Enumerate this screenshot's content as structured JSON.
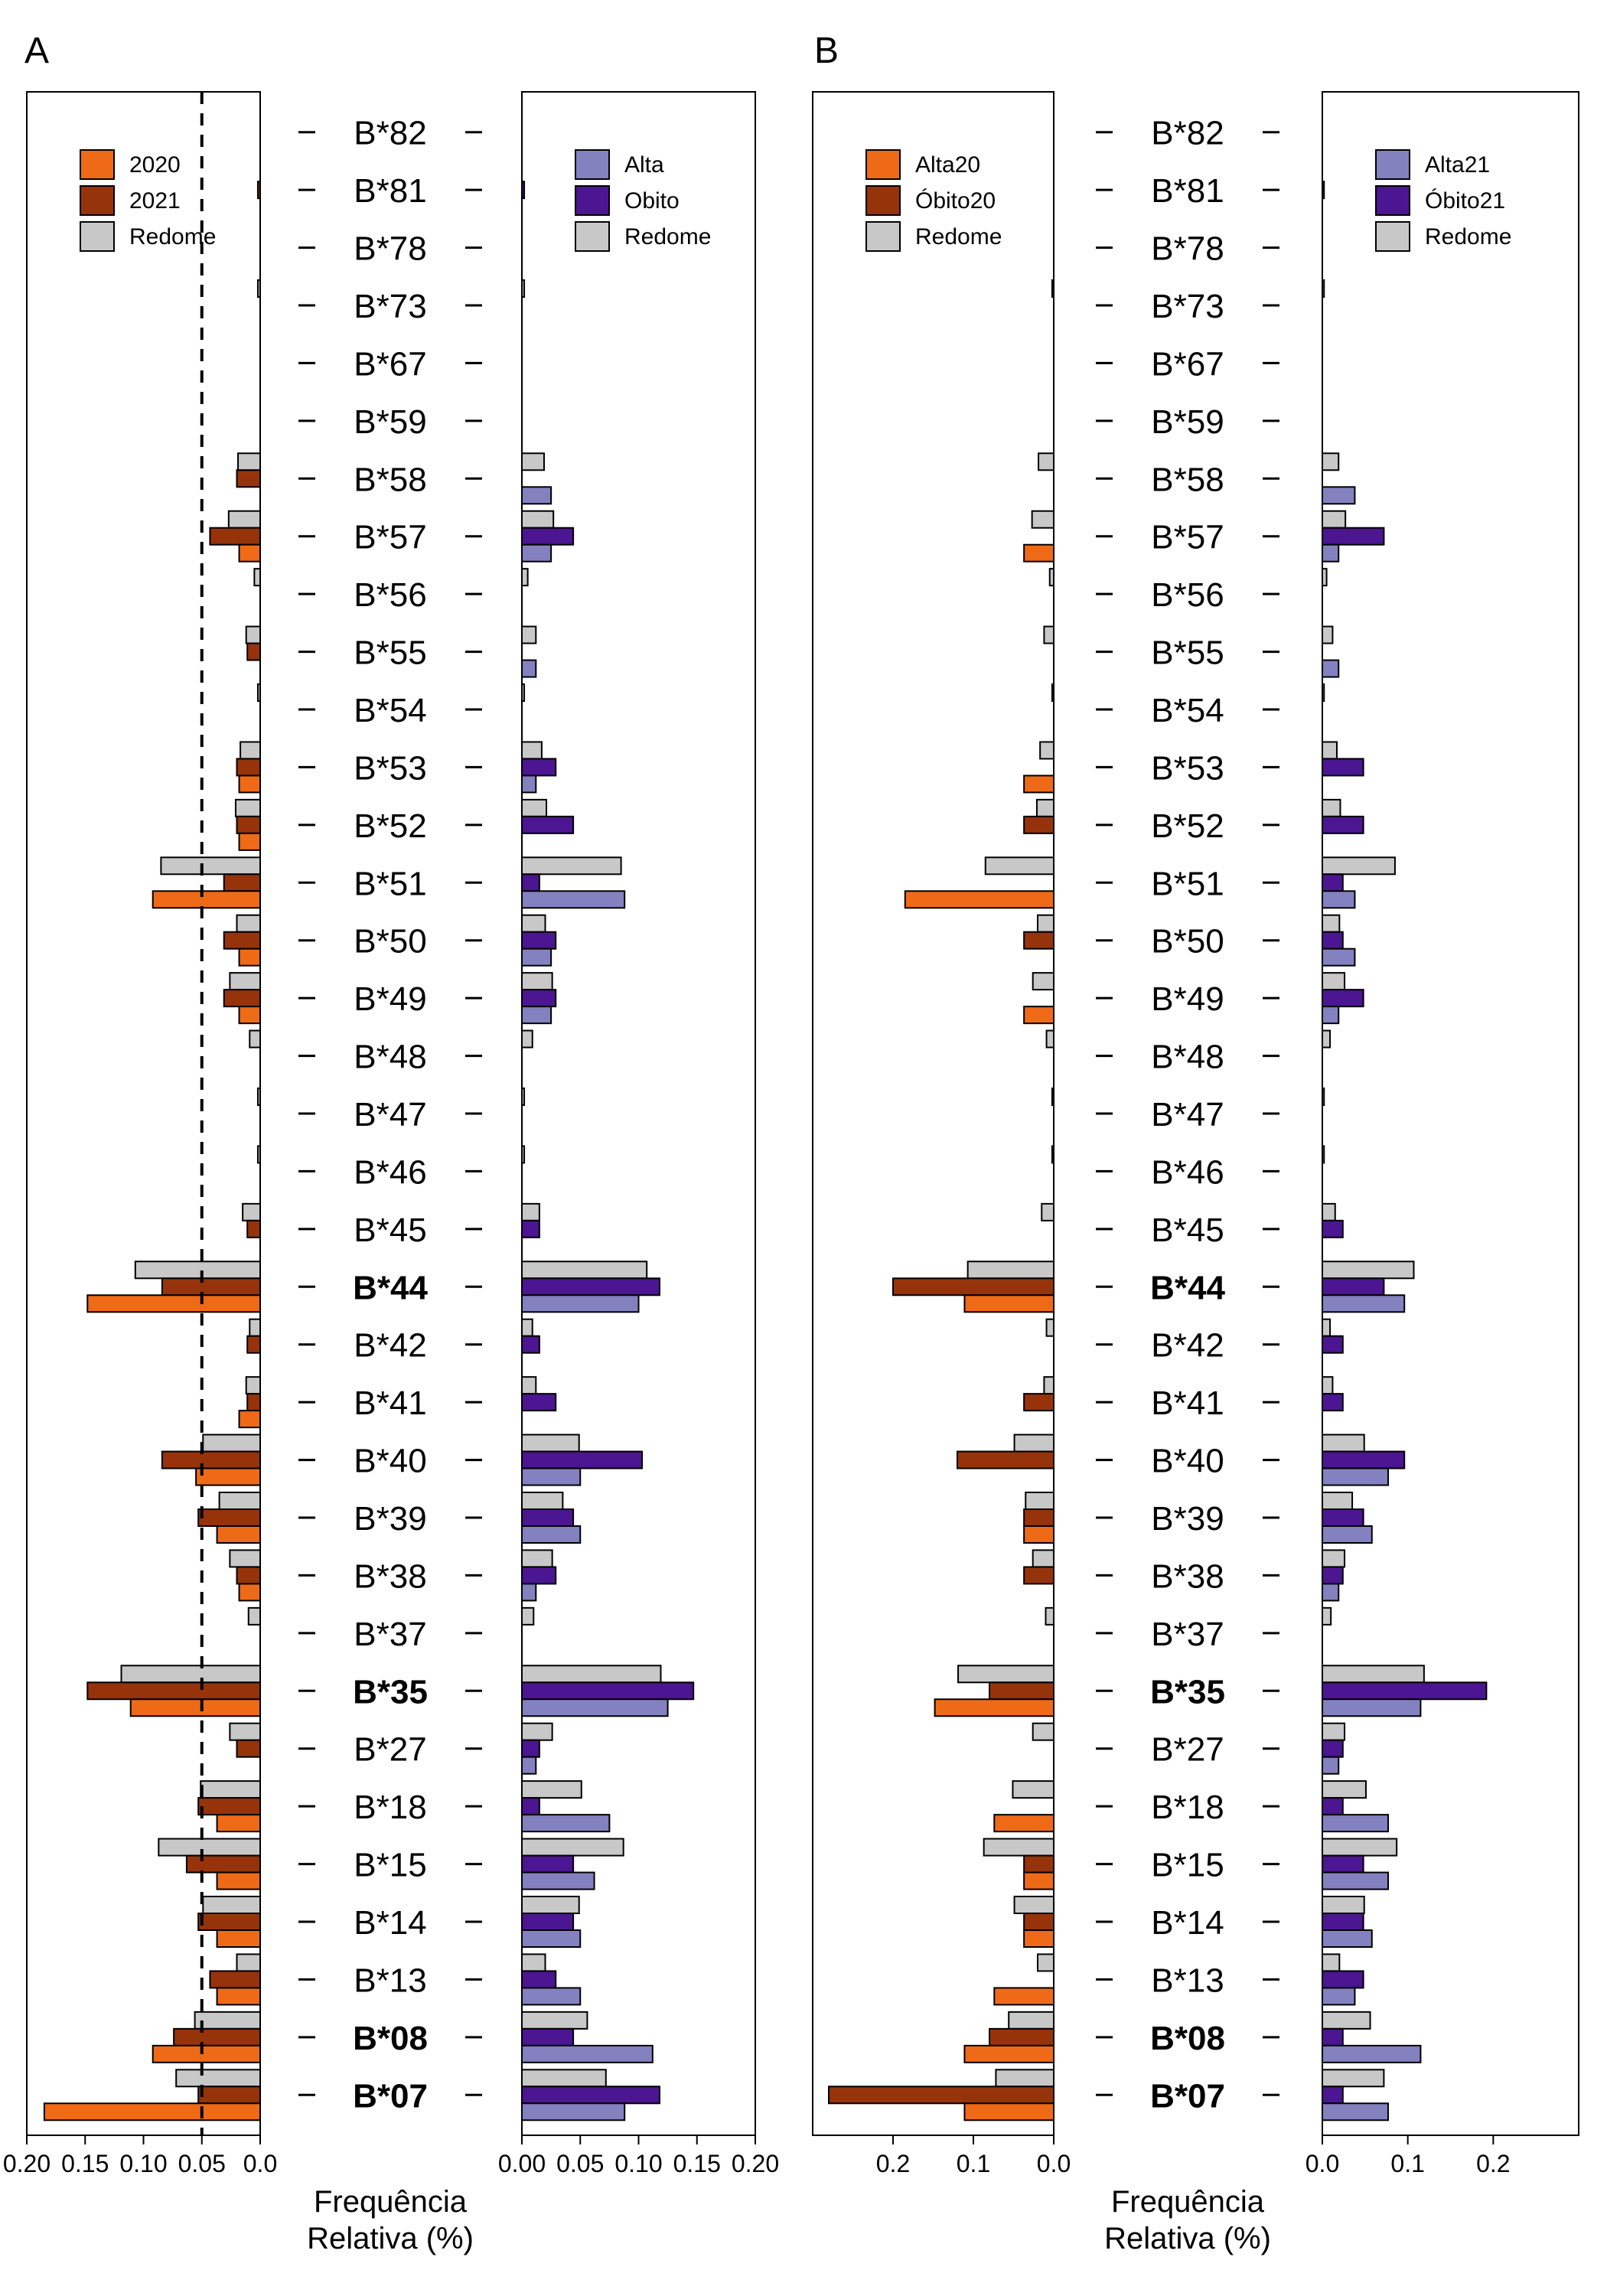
{
  "figure": {
    "genes": [
      "B*82",
      "B*81",
      "B*78",
      "B*73",
      "B*67",
      "B*59",
      "B*58",
      "B*57",
      "B*56",
      "B*55",
      "B*54",
      "B*53",
      "B*52",
      "B*51",
      "B*50",
      "B*49",
      "B*48",
      "B*47",
      "B*46",
      "B*45",
      "B*44",
      "B*42",
      "B*41",
      "B*40",
      "B*39",
      "B*38",
      "B*37",
      "B*35",
      "B*27",
      "B*18",
      "B*15",
      "B*14",
      "B*13",
      "B*08",
      "B*07"
    ],
    "bold_genes": [
      "B*44",
      "B*35",
      "B*08",
      "B*07"
    ],
    "xlabel_line1": "Frequência",
    "xlabel_line2": "Relativa (%)",
    "colors": {
      "orange": "#EF6A17",
      "brown": "#96330B",
      "grey": "#C8C8C8",
      "light_purple": "#8481C0",
      "dark_purple": "#4C1591",
      "outline": "#000000"
    }
  },
  "chart_data": [
    {
      "panel": "A",
      "side": "left",
      "type": "bar",
      "orientation": "horizontal-mirrored",
      "categories": [
        "B*82",
        "B*81",
        "B*78",
        "B*73",
        "B*67",
        "B*59",
        "B*58",
        "B*57",
        "B*56",
        "B*55",
        "B*54",
        "B*53",
        "B*52",
        "B*51",
        "B*50",
        "B*49",
        "B*48",
        "B*47",
        "B*46",
        "B*45",
        "B*44",
        "B*42",
        "B*41",
        "B*40",
        "B*39",
        "B*38",
        "B*37",
        "B*35",
        "B*27",
        "B*18",
        "B*15",
        "B*14",
        "B*13",
        "B*08",
        "B*07"
      ],
      "series": [
        {
          "name": "2020",
          "color": "#EF6A17",
          "values": [
            0,
            0,
            0,
            0,
            0,
            0,
            0,
            0.018,
            0,
            0,
            0,
            0.018,
            0.018,
            0.092,
            0.018,
            0.018,
            0,
            0,
            0,
            0,
            0.148,
            0,
            0.018,
            0.055,
            0.037,
            0.018,
            0,
            0.111,
            0,
            0.037,
            0.037,
            0.037,
            0.037,
            0.092,
            0.185
          ]
        },
        {
          "name": "2021",
          "color": "#96330B",
          "values": [
            0,
            0.002,
            0,
            0,
            0,
            0,
            0.02,
            0.043,
            0,
            0.011,
            0,
            0.02,
            0.02,
            0.031,
            0.031,
            0.031,
            0,
            0,
            0,
            0.011,
            0.084,
            0.011,
            0.011,
            0.084,
            0.053,
            0.02,
            0,
            0.148,
            0.02,
            0.053,
            0.063,
            0.053,
            0.043,
            0.074,
            0.053
          ]
        },
        {
          "name": "Redome",
          "color": "#C8C8C8",
          "values": [
            0,
            0,
            0,
            0.002,
            0,
            0,
            0.019,
            0.027,
            0.005,
            0.012,
            0.002,
            0.017,
            0.021,
            0.085,
            0.02,
            0.026,
            0.009,
            0.002,
            0.002,
            0.015,
            0.107,
            0.009,
            0.012,
            0.049,
            0.035,
            0.026,
            0.01,
            0.119,
            0.026,
            0.051,
            0.087,
            0.049,
            0.02,
            0.056,
            0.072
          ]
        }
      ],
      "reference_line": 0.05,
      "xlim": [
        0.2,
        0.0
      ],
      "xticks": [
        "0.20",
        "0.15",
        "0.10",
        "0.05",
        "0.0"
      ],
      "legend": "top-left"
    },
    {
      "panel": "A",
      "side": "right",
      "type": "bar",
      "orientation": "horizontal",
      "categories": [
        "B*82",
        "B*81",
        "B*78",
        "B*73",
        "B*67",
        "B*59",
        "B*58",
        "B*57",
        "B*56",
        "B*55",
        "B*54",
        "B*53",
        "B*52",
        "B*51",
        "B*50",
        "B*49",
        "B*48",
        "B*47",
        "B*46",
        "B*45",
        "B*44",
        "B*42",
        "B*41",
        "B*40",
        "B*39",
        "B*38",
        "B*37",
        "B*35",
        "B*27",
        "B*18",
        "B*15",
        "B*14",
        "B*13",
        "B*08",
        "B*07"
      ],
      "series": [
        {
          "name": "Alta",
          "color": "#8481C0",
          "values": [
            0,
            0,
            0,
            0,
            0,
            0,
            0.025,
            0.025,
            0,
            0.012,
            0,
            0.012,
            0,
            0.088,
            0.025,
            0.025,
            0,
            0,
            0,
            0,
            0.1,
            0,
            0,
            0.05,
            0.05,
            0.012,
            0,
            0.125,
            0.012,
            0.075,
            0.062,
            0.05,
            0.05,
            0.112,
            0.088
          ]
        },
        {
          "name": "Obito",
          "color": "#4C1591",
          "values": [
            0,
            0.002,
            0,
            0,
            0,
            0,
            0,
            0.044,
            0,
            0,
            0,
            0.029,
            0.044,
            0.015,
            0.029,
            0.029,
            0,
            0,
            0,
            0.015,
            0.118,
            0.015,
            0.029,
            0.103,
            0.044,
            0.029,
            0,
            0.147,
            0.015,
            0.015,
            0.044,
            0.044,
            0.029,
            0.044,
            0.118
          ]
        },
        {
          "name": "Redome",
          "color": "#C8C8C8",
          "values": [
            0,
            0,
            0,
            0.002,
            0,
            0,
            0.019,
            0.027,
            0.005,
            0.012,
            0.002,
            0.017,
            0.021,
            0.085,
            0.02,
            0.026,
            0.009,
            0.002,
            0.002,
            0.015,
            0.107,
            0.009,
            0.012,
            0.049,
            0.035,
            0.026,
            0.01,
            0.119,
            0.026,
            0.051,
            0.087,
            0.049,
            0.02,
            0.056,
            0.072
          ]
        }
      ],
      "xlim": [
        0.0,
        0.2
      ],
      "xticks": [
        "0.00",
        "0.05",
        "0.10",
        "0.15",
        "0.20"
      ],
      "legend": "top-right"
    },
    {
      "panel": "B",
      "side": "left",
      "type": "bar",
      "orientation": "horizontal-mirrored",
      "categories": [
        "B*82",
        "B*81",
        "B*78",
        "B*73",
        "B*67",
        "B*59",
        "B*58",
        "B*57",
        "B*56",
        "B*55",
        "B*54",
        "B*53",
        "B*52",
        "B*51",
        "B*50",
        "B*49",
        "B*48",
        "B*47",
        "B*46",
        "B*45",
        "B*44",
        "B*42",
        "B*41",
        "B*40",
        "B*39",
        "B*38",
        "B*37",
        "B*35",
        "B*27",
        "B*18",
        "B*15",
        "B*14",
        "B*13",
        "B*08",
        "B*07"
      ],
      "series": [
        {
          "name": "Alta20",
          "color": "#EF6A17",
          "values": [
            0,
            0,
            0,
            0,
            0,
            0,
            0,
            0.037,
            0,
            0,
            0,
            0.037,
            0,
            0.185,
            0,
            0.037,
            0,
            0,
            0,
            0,
            0.111,
            0,
            0,
            0,
            0.037,
            0,
            0,
            0.148,
            0,
            0.074,
            0.037,
            0.037,
            0.074,
            0.111,
            0.111
          ]
        },
        {
          "name": "Óbito20",
          "color": "#96330B",
          "values": [
            0,
            0,
            0,
            0,
            0,
            0,
            0,
            0,
            0,
            0,
            0,
            0,
            0.037,
            0,
            0.037,
            0,
            0,
            0,
            0,
            0,
            0.2,
            0,
            0.037,
            0.12,
            0.037,
            0.037,
            0,
            0.08,
            0,
            0,
            0.037,
            0.037,
            0,
            0.08,
            0.28
          ]
        },
        {
          "name": "Redome",
          "color": "#C8C8C8",
          "values": [
            0,
            0,
            0,
            0.002,
            0,
            0,
            0.019,
            0.027,
            0.005,
            0.012,
            0.002,
            0.017,
            0.021,
            0.085,
            0.02,
            0.026,
            0.009,
            0.002,
            0.002,
            0.015,
            0.107,
            0.009,
            0.012,
            0.049,
            0.035,
            0.026,
            0.01,
            0.119,
            0.026,
            0.051,
            0.087,
            0.049,
            0.02,
            0.056,
            0.072
          ]
        }
      ],
      "xlim": [
        0.3,
        0.0
      ],
      "xticks": [
        "0.2",
        "0.1",
        "0.0"
      ],
      "legend": "top-left"
    },
    {
      "panel": "B",
      "side": "right",
      "type": "bar",
      "orientation": "horizontal",
      "categories": [
        "B*82",
        "B*81",
        "B*78",
        "B*73",
        "B*67",
        "B*59",
        "B*58",
        "B*57",
        "B*56",
        "B*55",
        "B*54",
        "B*53",
        "B*52",
        "B*51",
        "B*50",
        "B*49",
        "B*48",
        "B*47",
        "B*46",
        "B*45",
        "B*44",
        "B*42",
        "B*41",
        "B*40",
        "B*39",
        "B*38",
        "B*37",
        "B*35",
        "B*27",
        "B*18",
        "B*15",
        "B*14",
        "B*13",
        "B*08",
        "B*07"
      ],
      "series": [
        {
          "name": "Alta21",
          "color": "#8481C0",
          "values": [
            0,
            0,
            0,
            0,
            0,
            0,
            0.038,
            0.019,
            0,
            0.019,
            0,
            0,
            0,
            0.038,
            0.038,
            0.019,
            0,
            0,
            0,
            0,
            0.096,
            0,
            0,
            0.077,
            0.058,
            0.019,
            0,
            0.115,
            0.019,
            0.077,
            0.077,
            0.058,
            0.038,
            0.115,
            0.077
          ]
        },
        {
          "name": "Óbito21",
          "color": "#4C1591",
          "values": [
            0,
            0.002,
            0,
            0,
            0,
            0,
            0,
            0.072,
            0,
            0,
            0,
            0.048,
            0.048,
            0.024,
            0.024,
            0.048,
            0,
            0,
            0,
            0.024,
            0.072,
            0.024,
            0.024,
            0.096,
            0.048,
            0.024,
            0,
            0.192,
            0.024,
            0.024,
            0.048,
            0.048,
            0.048,
            0.024,
            0.024
          ]
        },
        {
          "name": "Redome",
          "color": "#C8C8C8",
          "values": [
            0,
            0,
            0,
            0.002,
            0,
            0,
            0.019,
            0.027,
            0.005,
            0.012,
            0.002,
            0.017,
            0.021,
            0.085,
            0.02,
            0.026,
            0.009,
            0.002,
            0.002,
            0.015,
            0.107,
            0.009,
            0.012,
            0.049,
            0.035,
            0.026,
            0.01,
            0.119,
            0.026,
            0.051,
            0.087,
            0.049,
            0.02,
            0.056,
            0.072
          ]
        }
      ],
      "xlim": [
        0.0,
        0.3
      ],
      "xticks": [
        "0.0",
        "0.1",
        "0.2"
      ],
      "legend": "top-right"
    }
  ]
}
